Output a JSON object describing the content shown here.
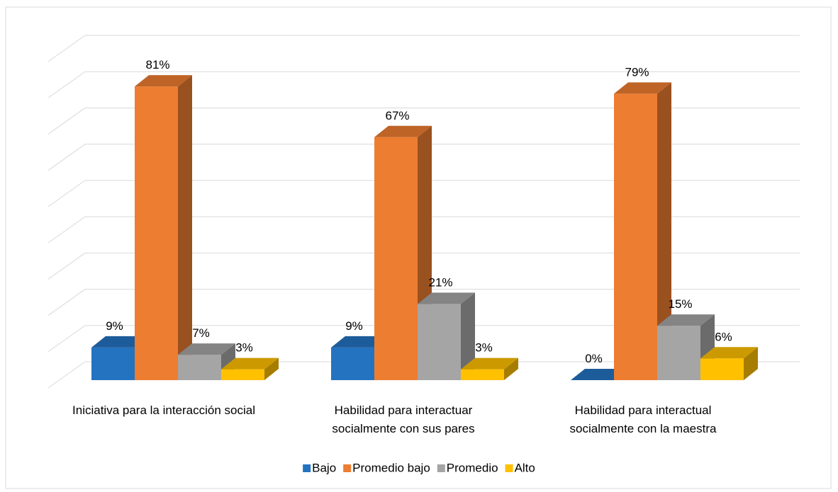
{
  "chart_data": {
    "type": "bar3d",
    "categories": [
      "Iniciativa para la interacción social",
      "Habilidad para interactuar socialmente con sus pares",
      "Habilidad para interactual socialmente con la maestra"
    ],
    "series": [
      {
        "name": "Bajo",
        "color": "#2473c0",
        "values": [
          9,
          9,
          0
        ],
        "value_labels": [
          "9%",
          "9%",
          "0%"
        ]
      },
      {
        "name": "Promedio bajo",
        "color": "#ed7d31",
        "values": [
          81,
          67,
          79
        ],
        "value_labels": [
          "81%",
          "67%",
          "79%"
        ]
      },
      {
        "name": "Promedio",
        "color": "#a5a5a5",
        "values": [
          7,
          21,
          15
        ],
        "value_labels": [
          "7%",
          "21%",
          "15%"
        ]
      },
      {
        "name": "Alto",
        "color": "#ffc000",
        "values": [
          3,
          3,
          6
        ],
        "value_labels": [
          "3%",
          "3%",
          "6%"
        ]
      }
    ],
    "ylim": [
      0,
      90
    ],
    "yticks": [
      0,
      10,
      20,
      30,
      40,
      50,
      60,
      70,
      80,
      90
    ],
    "grid": true,
    "legend": "bottom"
  }
}
